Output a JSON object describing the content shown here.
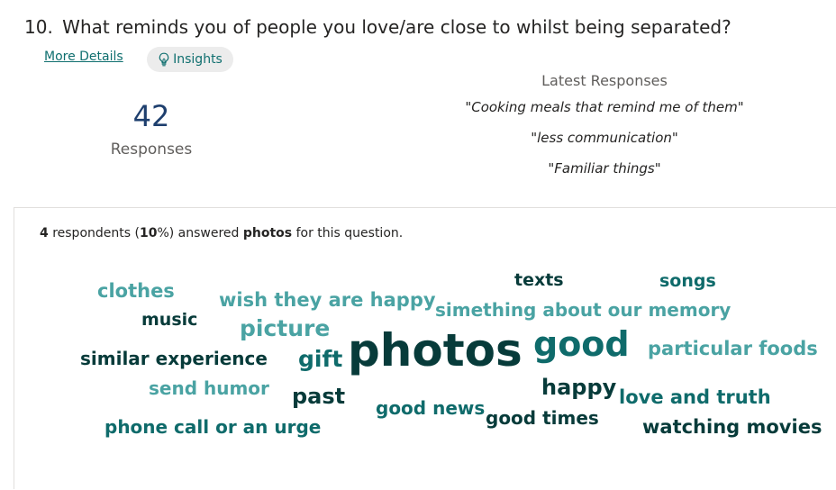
{
  "question": {
    "number": "10.",
    "text": "What reminds you of people you love/are close to whilst being separated?"
  },
  "actions": {
    "more_details": "More Details",
    "insights": "Insights"
  },
  "stats": {
    "count": "42",
    "count_label": "Responses"
  },
  "latest": {
    "title": "Latest Responses",
    "items": [
      "\"Cooking meals that remind me of them\"",
      "\"less communication\"",
      "\"Familiar things\""
    ]
  },
  "summary": {
    "count": "4",
    "middle": " respondents (",
    "percent": "10",
    "percent_suffix": "%) answered ",
    "word": "photos",
    "suffix": " for this question."
  },
  "colors": {
    "dark": "#073b3a",
    "mid": "#0f6b6b",
    "light": "#4aa3a3"
  },
  "word_cloud": [
    {
      "text": "clothes",
      "color": "#4aa3a3"
    },
    {
      "text": "wish they are happy",
      "color": "#4aa3a3"
    },
    {
      "text": "texts",
      "color": "#073b3a"
    },
    {
      "text": "songs",
      "color": "#0f6b6b"
    },
    {
      "text": "music",
      "color": "#073b3a"
    },
    {
      "text": "simething about our memory",
      "color": "#4aa3a3"
    },
    {
      "text": "picture",
      "color": "#4aa3a3"
    },
    {
      "text": "similar experience",
      "color": "#073b3a"
    },
    {
      "text": "gift",
      "color": "#0f6b6b"
    },
    {
      "text": "photos",
      "color": "#073b3a"
    },
    {
      "text": "good",
      "color": "#0f6b6b"
    },
    {
      "text": "particular foods",
      "color": "#4aa3a3"
    },
    {
      "text": "send humor",
      "color": "#4aa3a3"
    },
    {
      "text": "past",
      "color": "#073b3a"
    },
    {
      "text": "happy",
      "color": "#073b3a"
    },
    {
      "text": "love and truth",
      "color": "#0f6b6b"
    },
    {
      "text": "good news",
      "color": "#0f6b6b"
    },
    {
      "text": "good times",
      "color": "#073b3a"
    },
    {
      "text": "phone call or an urge",
      "color": "#0f6b6b"
    },
    {
      "text": "watching movies",
      "color": "#073b3a"
    }
  ]
}
